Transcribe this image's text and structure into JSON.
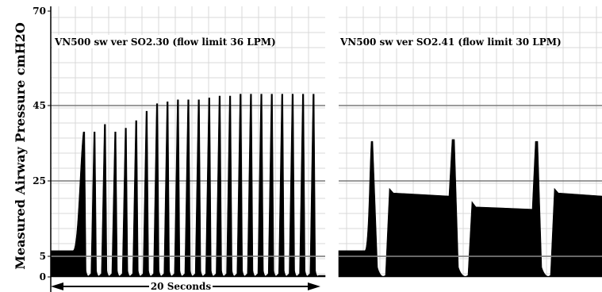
{
  "chart_data": {
    "type": "line",
    "ylabel": "Measured Airway Pressure cmH2O",
    "yticks": [
      0,
      5,
      25,
      45,
      70
    ],
    "ylim": [
      0,
      70
    ],
    "reference_lines": [
      5,
      25,
      45
    ],
    "grid": true,
    "duration_label": "20 Seconds",
    "panels": [
      {
        "title": "VN500 sw ver SO2.30 (flow limit 36 LPM)",
        "baseline_initial": 6.5,
        "pressure_peaks": [
          38,
          38,
          40,
          38,
          39,
          41,
          43.5,
          45.5,
          46,
          46.5,
          46.5,
          46.5,
          47,
          47.5,
          47.5,
          48,
          48,
          48,
          48,
          48,
          48,
          48,
          48
        ]
      },
      {
        "title": "VN500 sw ver SO2.41 (flow limit 30 LPM)",
        "breaths": [
          {
            "pre_level": 6.5,
            "peak": 35.5,
            "plateau_start": 23,
            "plateau": 21
          },
          {
            "pre_level": 0.5,
            "peak": 36,
            "plateau_start": 19.5,
            "plateau": 17.5
          },
          {
            "pre_level": 0.5,
            "peak": 35.5,
            "plateau_start": 23,
            "plateau": 21
          }
        ]
      }
    ]
  }
}
